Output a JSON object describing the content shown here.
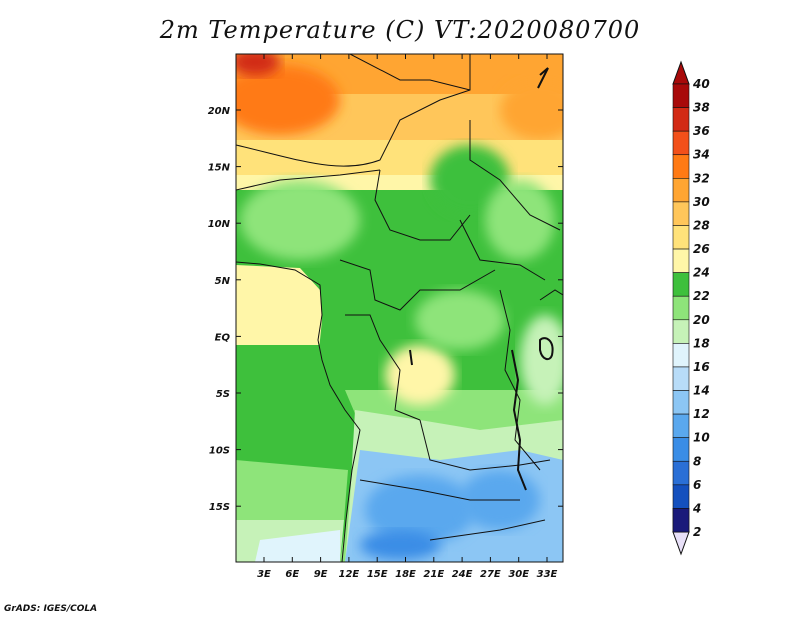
{
  "title": "2m Temperature (C) VT:2020080700",
  "credit": "GrADS: IGES/COLA",
  "map": {
    "lat_ticks": [
      "20N",
      "15N",
      "10N",
      "5N",
      "EQ",
      "5S",
      "10S",
      "15S"
    ],
    "lon_ticks": [
      "3E",
      "6E",
      "9E",
      "12E",
      "15E",
      "18E",
      "21E",
      "24E",
      "27E",
      "30E",
      "33E"
    ]
  },
  "colorbar": {
    "labels": [
      "2",
      "4",
      "6",
      "8",
      "10",
      "12",
      "14",
      "16",
      "18",
      "20",
      "22",
      "24",
      "26",
      "28",
      "30",
      "32",
      "34",
      "36",
      "38",
      "40"
    ],
    "colors": [
      "#1a1a7a",
      "#0a2a9a",
      "#1450be",
      "#2a6fd6",
      "#3a8de6",
      "#5aa8ee",
      "#8cc6f4",
      "#b8dcf8",
      "#e0f4fc",
      "#c6f2b8",
      "#8ee47a",
      "#3ec03c",
      "#fff6a8",
      "#ffe27a",
      "#ffc65a",
      "#ffa532",
      "#ff7a14",
      "#f2501a",
      "#d22a14",
      "#a80a0a"
    ],
    "arrow_low_color": "#e8e0f8",
    "arrow_high_color": "#a80a0a"
  }
}
